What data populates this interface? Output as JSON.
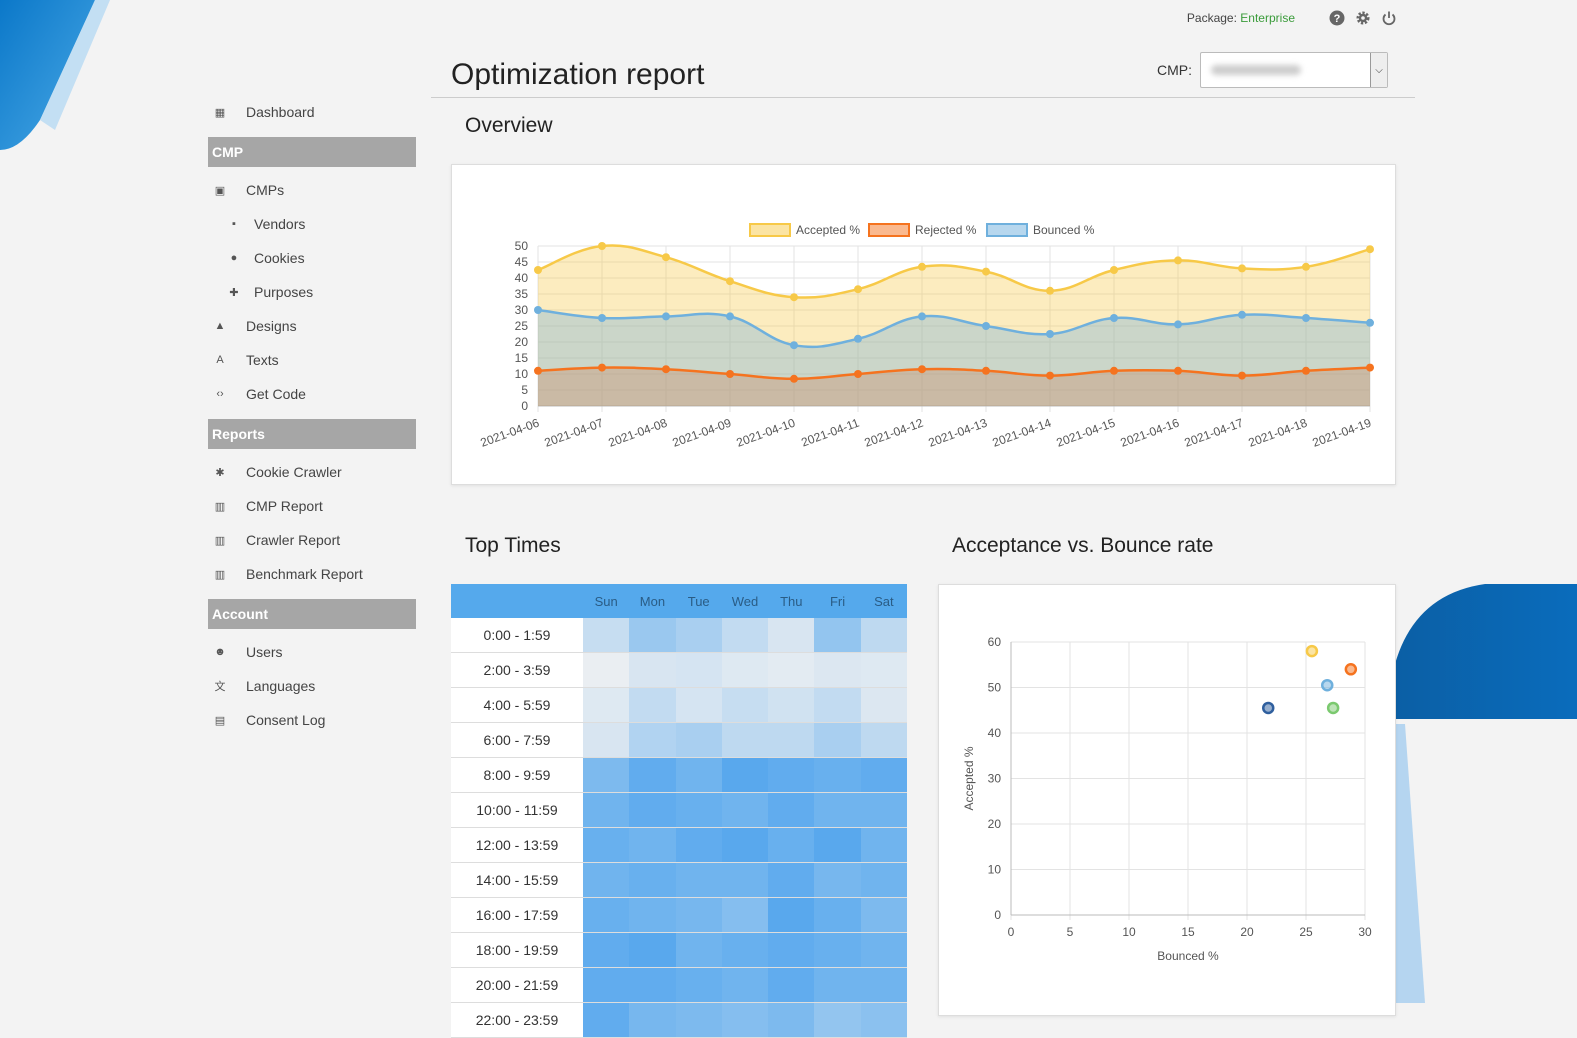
{
  "header": {
    "package_label": "Package:",
    "package_value": "Enterprise",
    "page_title": "Optimization report",
    "cmp_label": "CMP:"
  },
  "sidebar": {
    "items": [
      {
        "label": "Dashboard",
        "icon": "dashboard-icon",
        "glyph": "▦",
        "sub": false
      }
    ],
    "sections": [
      {
        "title": "CMP",
        "items": [
          {
            "label": "CMPs",
            "icon": "window-icon",
            "glyph": "▣",
            "sub": false
          },
          {
            "label": "Vendors",
            "icon": "chat-icon",
            "glyph": "▪",
            "sub": true
          },
          {
            "label": "Cookies",
            "icon": "cookie-icon",
            "glyph": "●",
            "sub": true
          },
          {
            "label": "Purposes",
            "icon": "puzzle-icon",
            "glyph": "✚",
            "sub": true
          },
          {
            "label": "Designs",
            "icon": "image-icon",
            "glyph": "▲",
            "sub": false
          },
          {
            "label": "Texts",
            "icon": "text-icon",
            "glyph": "A",
            "sub": false
          },
          {
            "label": "Get Code",
            "icon": "code-icon",
            "glyph": "‹›",
            "sub": false
          }
        ]
      },
      {
        "title": "Reports",
        "items": [
          {
            "label": "Cookie Crawler",
            "icon": "bug-icon",
            "glyph": "✱",
            "sub": false
          },
          {
            "label": "CMP Report",
            "icon": "bar-chart-icon",
            "glyph": "▥",
            "sub": false
          },
          {
            "label": "Crawler Report",
            "icon": "bar-chart-icon",
            "glyph": "▥",
            "sub": false
          },
          {
            "label": "Benchmark Report",
            "icon": "bar-chart-icon",
            "glyph": "▥",
            "sub": false
          }
        ]
      },
      {
        "title": "Account",
        "items": [
          {
            "label": "Users",
            "icon": "users-icon",
            "glyph": "☻",
            "sub": false
          },
          {
            "label": "Languages",
            "icon": "translate-icon",
            "glyph": "文",
            "sub": false
          },
          {
            "label": "Consent Log",
            "icon": "clipboard-icon",
            "glyph": "▤",
            "sub": false
          }
        ]
      }
    ]
  },
  "overview": {
    "heading": "Overview",
    "chart_data": {
      "type": "line",
      "x": [
        "2021-04-06",
        "2021-04-07",
        "2021-04-08",
        "2021-04-09",
        "2021-04-10",
        "2021-04-11",
        "2021-04-12",
        "2021-04-13",
        "2021-04-14",
        "2021-04-15",
        "2021-04-16",
        "2021-04-17",
        "2021-04-18",
        "2021-04-19"
      ],
      "series": [
        {
          "name": "Accepted %",
          "color": "#f7c948",
          "values": [
            42.5,
            50,
            46.5,
            39,
            34,
            36.5,
            43.5,
            42,
            36,
            42.5,
            45.5,
            43,
            43.5,
            49
          ]
        },
        {
          "name": "Rejected %",
          "color": "#f5731f",
          "values": [
            11,
            12,
            11.5,
            10,
            8.5,
            10,
            11.5,
            11,
            9.5,
            11,
            11,
            9.5,
            11,
            12
          ]
        },
        {
          "name": "Bounced %",
          "color": "#6fb0dd",
          "values": [
            30,
            27.5,
            28,
            28,
            19,
            21,
            28,
            25,
            22.5,
            27.5,
            25.5,
            28.5,
            27.5,
            26
          ]
        }
      ],
      "ylim": [
        0,
        50
      ],
      "yticks": [
        0,
        5,
        10,
        15,
        20,
        25,
        30,
        35,
        40,
        45,
        50
      ],
      "legend": "top",
      "grid": true
    }
  },
  "top_times": {
    "heading": "Top Times",
    "days": [
      "Sun",
      "Mon",
      "Tue",
      "Wed",
      "Thu",
      "Fri",
      "Sat"
    ],
    "rows": [
      {
        "label": "0:00 - 1:59",
        "v": [
          0.25,
          0.55,
          0.45,
          0.28,
          0.12,
          0.6,
          0.3
        ]
      },
      {
        "label": "2:00 - 3:59",
        "v": [
          0.0,
          0.12,
          0.15,
          0.08,
          0.05,
          0.1,
          0.08
        ]
      },
      {
        "label": "4:00 - 5:59",
        "v": [
          0.08,
          0.28,
          0.15,
          0.25,
          0.18,
          0.28,
          0.1
        ]
      },
      {
        "label": "6:00 - 7:59",
        "v": [
          0.12,
          0.4,
          0.45,
          0.3,
          0.3,
          0.45,
          0.3
        ]
      },
      {
        "label": "8:00 - 9:59",
        "v": [
          0.75,
          0.95,
          0.85,
          1.0,
          0.95,
          0.9,
          0.95
        ]
      },
      {
        "label": "10:00 - 11:59",
        "v": [
          0.85,
          0.95,
          0.9,
          0.85,
          0.95,
          0.85,
          0.85
        ]
      },
      {
        "label": "12:00 - 13:59",
        "v": [
          0.9,
          0.85,
          0.95,
          1.0,
          0.9,
          1.0,
          0.85
        ]
      },
      {
        "label": "14:00 - 15:59",
        "v": [
          0.85,
          0.9,
          0.85,
          0.85,
          0.95,
          0.8,
          0.85
        ]
      },
      {
        "label": "16:00 - 17:59",
        "v": [
          0.9,
          0.85,
          0.8,
          0.7,
          1.0,
          0.9,
          0.75
        ]
      },
      {
        "label": "18:00 - 19:59",
        "v": [
          0.95,
          1.0,
          0.85,
          0.9,
          0.95,
          0.9,
          0.85
        ]
      },
      {
        "label": "20:00 - 21:59",
        "v": [
          0.95,
          0.95,
          0.9,
          0.85,
          0.95,
          0.85,
          0.85
        ]
      },
      {
        "label": "22:00 - 23:59",
        "v": [
          0.95,
          0.8,
          0.75,
          0.7,
          0.75,
          0.6,
          0.65
        ]
      }
    ]
  },
  "scatter": {
    "heading": "Acceptance vs. Bounce rate",
    "chart_data": {
      "type": "scatter",
      "xlabel": "Bounced %",
      "ylabel": "Accepted %",
      "xlim": [
        0,
        30
      ],
      "ylim": [
        0,
        60
      ],
      "xticks": [
        0,
        5,
        10,
        15,
        20,
        25,
        30
      ],
      "yticks": [
        0,
        10,
        20,
        30,
        40,
        50,
        60
      ],
      "points": [
        {
          "x": 21.8,
          "y": 45.5,
          "color": "#2f5f9e"
        },
        {
          "x": 25.5,
          "y": 58,
          "color": "#f7c948"
        },
        {
          "x": 26.8,
          "y": 50.5,
          "color": "#6fb0dd"
        },
        {
          "x": 27.3,
          "y": 45.5,
          "color": "#7bc96f"
        },
        {
          "x": 28.8,
          "y": 54,
          "color": "#f5731f"
        }
      ]
    }
  }
}
